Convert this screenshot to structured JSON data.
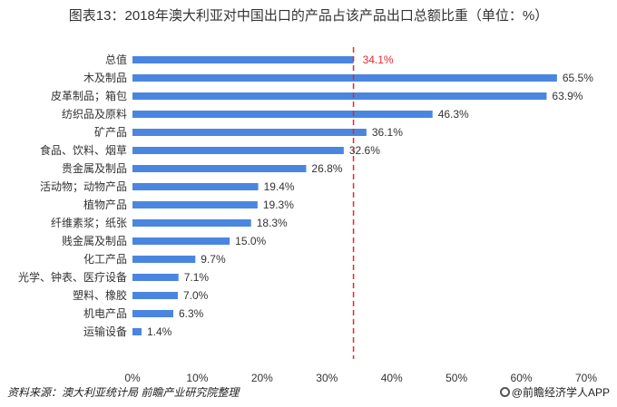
{
  "chart_data": {
    "type": "bar",
    "orientation": "horizontal",
    "title": "图表13：2018年澳大利亚对中国出口的产品占该产品出口总额比重（单位：%）",
    "categories": [
      "总值",
      "木及制品",
      "皮革制品；箱包",
      "纺织品及原料",
      "矿产品",
      "食品、饮料、烟草",
      "贵金属及制品",
      "活动物；动物产品",
      "植物产品",
      "纤维素浆；纸张",
      "贱金属及制品",
      "化工产品",
      "光学、钟表、医疗设备",
      "塑料、橡胶",
      "机电产品",
      "运输设备"
    ],
    "values": [
      34.1,
      65.5,
      63.9,
      46.3,
      36.1,
      32.6,
      26.8,
      19.4,
      19.3,
      18.3,
      15.0,
      9.7,
      7.1,
      7.0,
      6.3,
      1.4
    ],
    "value_labels": [
      "34.1%",
      "65.5%",
      "63.9%",
      "46.3%",
      "36.1%",
      "32.6%",
      "26.8%",
      "19.4%",
      "19.3%",
      "18.3%",
      "15.0%",
      "9.7%",
      "7.1%",
      "7.0%",
      "6.3%",
      "1.4%"
    ],
    "xlim": [
      0,
      70
    ],
    "xticks": [
      0,
      10,
      20,
      30,
      40,
      50,
      60,
      70
    ],
    "xtick_labels": [
      "0%",
      "10%",
      "20%",
      "30%",
      "40%",
      "50%",
      "60%",
      "70%"
    ],
    "reference_line": {
      "value": 34.1,
      "label": "34.1%",
      "style": "dashed",
      "color": "#e8262c"
    },
    "bar_color": "#4a86e0",
    "label_color": "#333333"
  },
  "footer": {
    "source": "资料来源：澳大利亚统计局 前瞻产业研究院整理",
    "brand": "@前瞻经济学人APP"
  }
}
